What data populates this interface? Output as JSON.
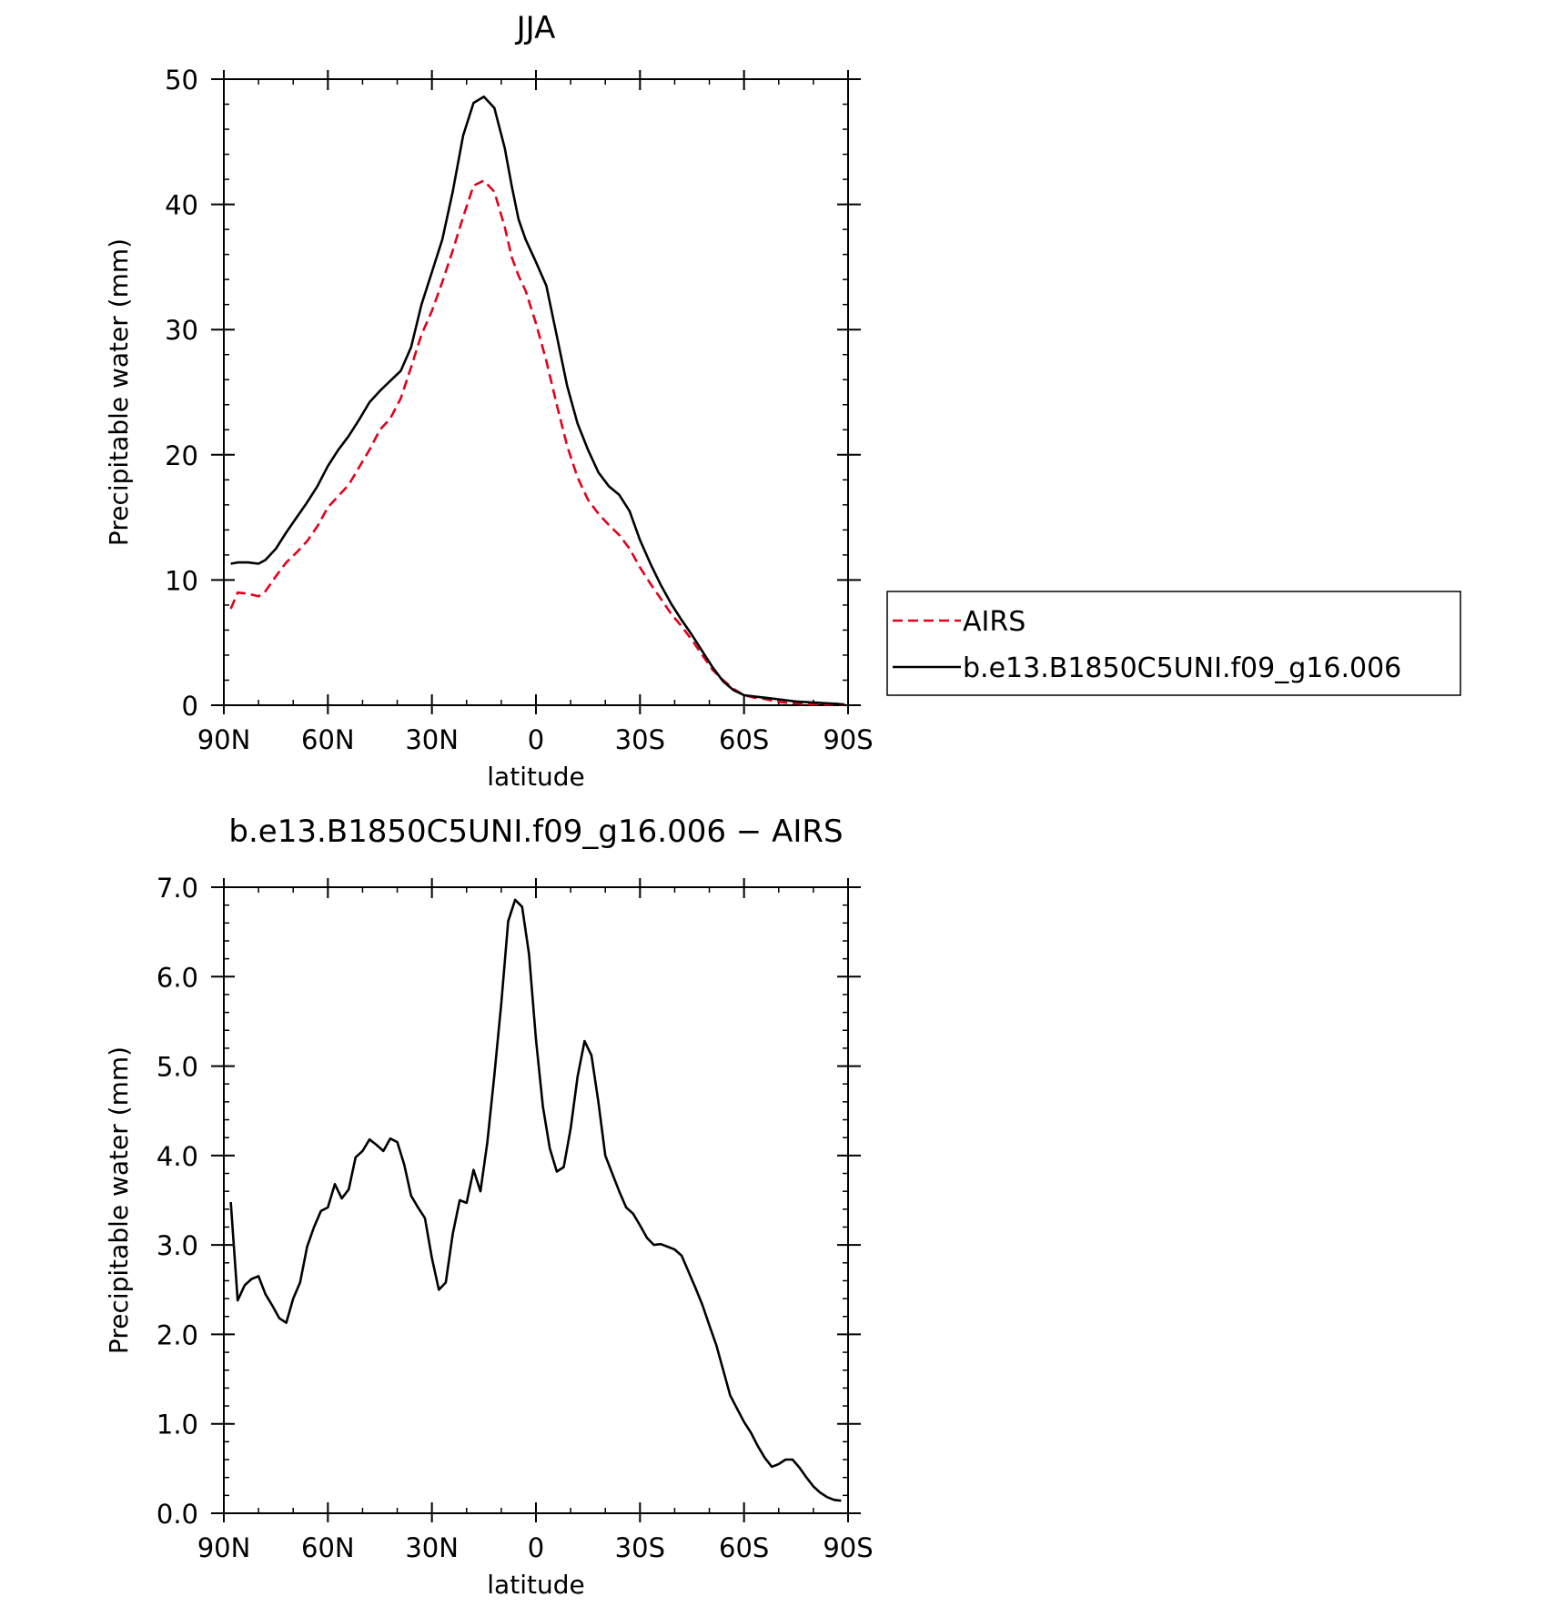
{
  "chart_data": [
    {
      "type": "line",
      "title": "JJA",
      "xlabel": "latitude",
      "ylabel": "Precipitable water (mm)",
      "xlim": [
        90,
        -90
      ],
      "ylim": [
        0,
        50
      ],
      "x_ticks": [
        90,
        60,
        30,
        0,
        -30,
        -60,
        -90
      ],
      "x_tick_labels": [
        "90N",
        "60N",
        "30N",
        "0",
        "30S",
        "60S",
        "90S"
      ],
      "y_ticks": [
        0,
        10,
        20,
        30,
        40,
        50
      ],
      "y_tick_labels": [
        "0",
        "10",
        "20",
        "30",
        "40",
        "50"
      ],
      "grid": false,
      "legend_position": "right",
      "series": [
        {
          "name": "AIRS",
          "color": "#e3001b",
          "dash": "dashed",
          "x": [
            88,
            86,
            83,
            80,
            78,
            75,
            72,
            69,
            66,
            63,
            60,
            57,
            54,
            51,
            48,
            45,
            42,
            39,
            36,
            33,
            30,
            27,
            24,
            21,
            18,
            15,
            12,
            9,
            7,
            5,
            3,
            0,
            -3,
            -6,
            -9,
            -12,
            -15,
            -18,
            -21,
            -24,
            -27,
            -30,
            -33,
            -36,
            -39,
            -42,
            -45,
            -48,
            -51,
            -54,
            -57,
            -60,
            -63,
            -66,
            -69,
            -72,
            -75,
            -78,
            -81,
            -84,
            -87,
            -89
          ],
          "y": [
            7.7,
            9.0,
            8.9,
            8.7,
            9.1,
            10.3,
            11.4,
            12.2,
            13.1,
            14.3,
            15.8,
            16.7,
            17.6,
            19.0,
            20.4,
            22.0,
            22.9,
            24.5,
            27.0,
            29.6,
            31.5,
            33.8,
            36.3,
            39.0,
            41.5,
            41.9,
            41.0,
            38.2,
            35.8,
            34.3,
            33.1,
            30.5,
            27.5,
            24.0,
            20.7,
            18.2,
            16.4,
            15.3,
            14.4,
            13.6,
            12.5,
            11.0,
            9.7,
            8.5,
            7.3,
            6.3,
            5.2,
            4.0,
            2.8,
            2.0,
            1.3,
            0.8,
            0.6,
            0.5,
            0.3,
            0.2,
            0.15,
            0.1,
            0.08,
            0.06,
            0.04,
            0.03
          ]
        },
        {
          "name": "b.e13.B1850C5UNI.f09_g16.006",
          "color": "#000000",
          "dash": "solid",
          "x": [
            88,
            86,
            83,
            80,
            78,
            75,
            72,
            69,
            66,
            63,
            60,
            57,
            54,
            51,
            48,
            45,
            42,
            39,
            36,
            33,
            30,
            27,
            24,
            21,
            18,
            15,
            12,
            9,
            7,
            5,
            3,
            0,
            -3,
            -6,
            -9,
            -12,
            -15,
            -18,
            -21,
            -24,
            -27,
            -30,
            -33,
            -36,
            -39,
            -42,
            -45,
            -48,
            -51,
            -54,
            -57,
            -60,
            -63,
            -66,
            -69,
            -72,
            -75,
            -78,
            -81,
            -84,
            -87,
            -89
          ],
          "y": [
            11.3,
            11.4,
            11.4,
            11.3,
            11.6,
            12.5,
            13.8,
            15.0,
            16.2,
            17.5,
            19.1,
            20.4,
            21.5,
            22.8,
            24.2,
            25.1,
            25.9,
            26.7,
            28.6,
            32.0,
            34.6,
            37.2,
            41.0,
            45.5,
            48.1,
            48.6,
            47.7,
            44.5,
            41.5,
            38.8,
            37.2,
            35.4,
            33.5,
            29.5,
            25.5,
            22.5,
            20.4,
            18.6,
            17.5,
            16.8,
            15.5,
            13.2,
            11.3,
            9.6,
            8.1,
            6.8,
            5.6,
            4.3,
            3.0,
            1.9,
            1.2,
            0.8,
            0.7,
            0.6,
            0.5,
            0.4,
            0.3,
            0.25,
            0.2,
            0.15,
            0.1,
            0.05
          ]
        }
      ]
    },
    {
      "type": "line",
      "title": "b.e13.B1850C5UNI.f09_g16.006 − AIRS",
      "xlabel": "latitude",
      "ylabel": "Precipitable water (mm)",
      "xlim": [
        90,
        -90
      ],
      "ylim": [
        0,
        7
      ],
      "x_ticks": [
        90,
        60,
        30,
        0,
        -30,
        -60,
        -90
      ],
      "x_tick_labels": [
        "90N",
        "60N",
        "30N",
        "0",
        "30S",
        "60S",
        "90S"
      ],
      "y_ticks": [
        0,
        1,
        2,
        3,
        4,
        5,
        6,
        7
      ],
      "y_tick_labels": [
        "0.0",
        "1.0",
        "2.0",
        "3.0",
        "4.0",
        "5.0",
        "6.0",
        "7.0"
      ],
      "grid": false,
      "series": [
        {
          "color": "#000000",
          "dash": "solid",
          "x": [
            88,
            86,
            84,
            82,
            80,
            78,
            76,
            74,
            72,
            70,
            68,
            66,
            64,
            62,
            60,
            58,
            56,
            54,
            52,
            50,
            48,
            46,
            44,
            42,
            40,
            38,
            36,
            34,
            32,
            30,
            28,
            26,
            24,
            22,
            20,
            18,
            16,
            14,
            12,
            10,
            8,
            6,
            4,
            2,
            0,
            -2,
            -4,
            -6,
            -8,
            -10,
            -12,
            -14,
            -16,
            -18,
            -20,
            -22,
            -24,
            -26,
            -28,
            -30,
            -32,
            -34,
            -36,
            -38,
            -40,
            -42,
            -44,
            -46,
            -48,
            -50,
            -52,
            -54,
            -56,
            -58,
            -60,
            -62,
            -64,
            -66,
            -68,
            -70,
            -72,
            -74,
            -76,
            -78,
            -80,
            -82,
            -84,
            -86,
            -88
          ],
          "y": [
            3.48,
            2.38,
            2.55,
            2.62,
            2.65,
            2.45,
            2.32,
            2.18,
            2.13,
            2.4,
            2.58,
            2.98,
            3.2,
            3.38,
            3.42,
            3.68,
            3.52,
            3.62,
            3.98,
            4.05,
            4.18,
            4.12,
            4.05,
            4.19,
            4.15,
            3.9,
            3.55,
            3.42,
            3.3,
            2.85,
            2.5,
            2.58,
            3.12,
            3.5,
            3.47,
            3.84,
            3.6,
            4.15,
            4.9,
            5.7,
            6.62,
            6.86,
            6.78,
            6.25,
            5.3,
            4.55,
            4.08,
            3.82,
            3.87,
            4.3,
            4.88,
            5.28,
            5.12,
            4.6,
            4.0,
            3.8,
            3.6,
            3.42,
            3.35,
            3.22,
            3.08,
            3.0,
            3.01,
            2.98,
            2.95,
            2.88,
            2.7,
            2.52,
            2.33,
            2.1,
            1.88,
            1.6,
            1.32,
            1.17,
            1.02,
            0.9,
            0.75,
            0.62,
            0.52,
            0.55,
            0.6,
            0.6,
            0.51,
            0.4,
            0.3,
            0.23,
            0.18,
            0.15,
            0.14
          ]
        }
      ]
    }
  ],
  "legend": {
    "items": [
      {
        "label": "AIRS",
        "color": "#e3001b",
        "dash": "dashed"
      },
      {
        "label": "b.e13.B1850C5UNI.f09_g16.006",
        "color": "#000000",
        "dash": "solid"
      }
    ]
  }
}
